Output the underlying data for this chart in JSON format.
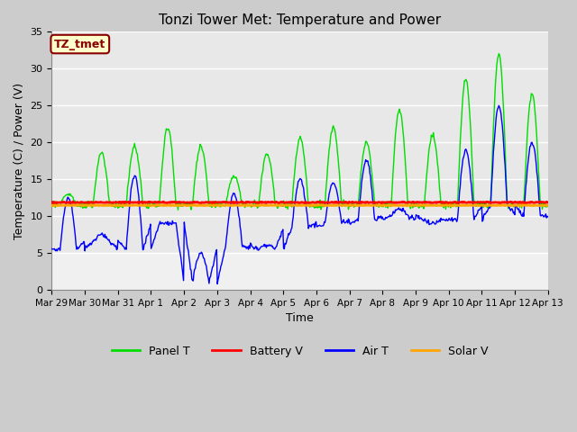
{
  "title": "Tonzi Tower Met: Temperature and Power",
  "xlabel": "Time",
  "ylabel": "Temperature (C) / Power (V)",
  "ylim": [
    0,
    35
  ],
  "yticks": [
    0,
    5,
    10,
    15,
    20,
    25,
    30,
    35
  ],
  "xtick_labels": [
    "Mar 29",
    "Mar 30",
    "Mar 31",
    "Apr 1",
    "Apr 2",
    "Apr 3",
    "Apr 4",
    "Apr 5",
    "Apr 6",
    "Apr 7",
    "Apr 8",
    "Apr 9",
    "Apr 10",
    "Apr 11",
    "Apr 12",
    "Apr 13"
  ],
  "annotation_text": "TZ_tmet",
  "annotation_box_color": "#FFFFCC",
  "annotation_text_color": "#880000",
  "battery_v": 11.85,
  "solar_v": 11.45,
  "panel_color": "#00DD00",
  "battery_color": "#FF0000",
  "air_color": "#0000FF",
  "solar_color": "#FFA500",
  "fig_bg_color": "#CCCCCC",
  "plot_bg_color": "#F0F0F0",
  "grid_band_color": "#E0E0E0",
  "n_days": 15,
  "panel_day_peaks": [
    13.0,
    18.5,
    19.5,
    22.0,
    19.5,
    15.5,
    18.5,
    20.5,
    22.0,
    20.0,
    24.5,
    21.0,
    28.5,
    32.0,
    26.5
  ],
  "air_day_peaks": [
    12.5,
    7.5,
    15.5,
    9.0,
    5.0,
    13.0,
    6.0,
    15.0,
    14.5,
    17.5,
    11.0,
    9.0,
    19.0,
    25.0,
    20.0
  ],
  "air_day_mins": [
    5.5,
    6.5,
    5.5,
    9.0,
    1.0,
    6.0,
    5.5,
    8.5,
    9.0,
    9.5,
    10.0,
    9.5,
    9.5,
    11.5,
    10.0
  ]
}
